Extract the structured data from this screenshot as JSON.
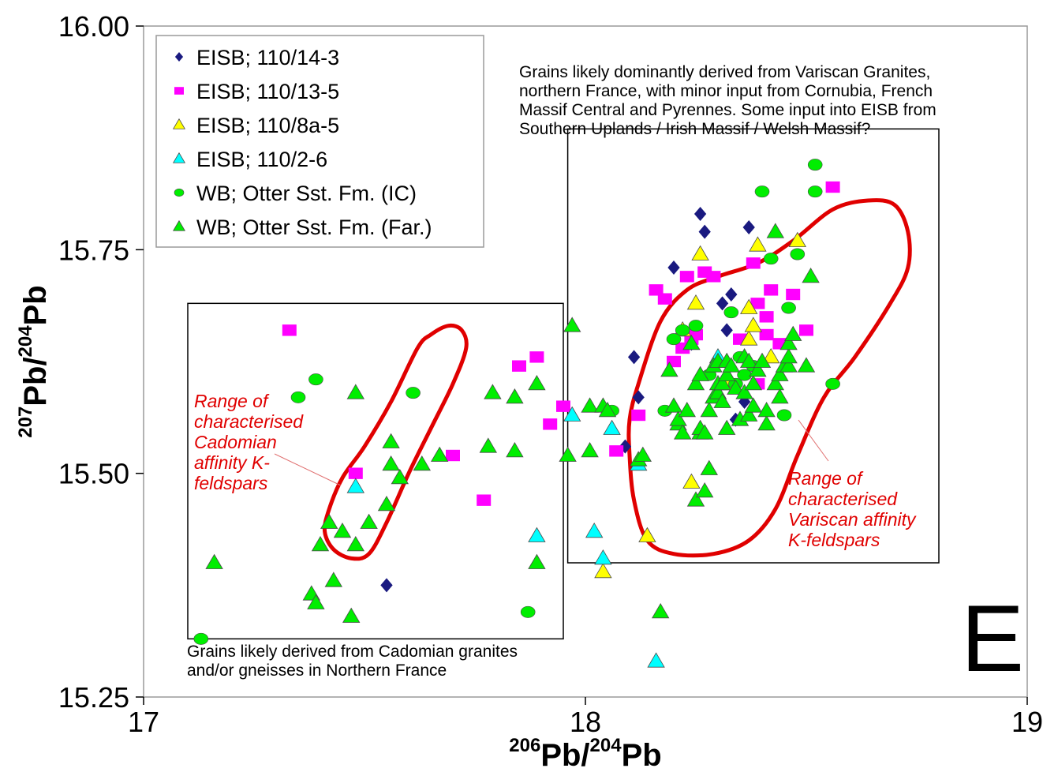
{
  "chart_data": {
    "type": "scatter",
    "title": "",
    "xlabel": {
      "sup1": "206",
      "main1": "Pb/",
      "sup2": "204",
      "main2": "Pb"
    },
    "ylabel": {
      "sup1": "207",
      "main1": "Pb/",
      "sup2": "204",
      "main2": "Pb"
    },
    "xlim": [
      17,
      19
    ],
    "ylim": [
      15.25,
      16.0
    ],
    "x_ticks": [
      {
        "value": 17,
        "label": "17"
      },
      {
        "value": 18,
        "label": "18"
      },
      {
        "value": 19,
        "label": "19"
      }
    ],
    "y_ticks": [
      {
        "value": 15.25,
        "label": "15.25"
      },
      {
        "value": 15.5,
        "label": "15.50"
      },
      {
        "value": 15.75,
        "label": "15.75"
      },
      {
        "value": 16.0,
        "label": "16.00"
      }
    ],
    "grid": false,
    "legend_position": "top-left",
    "panel_letter": "E",
    "series": [
      {
        "name": "EISB; 110/14-3",
        "marker": "diamond",
        "color": "#1a1a80",
        "points": [
          [
            17.55,
            15.375
          ],
          [
            18.09,
            15.53
          ],
          [
            18.11,
            15.63
          ],
          [
            18.12,
            15.585
          ],
          [
            18.2,
            15.73
          ],
          [
            18.24,
            15.645
          ],
          [
            18.26,
            15.79
          ],
          [
            18.27,
            15.77
          ],
          [
            18.31,
            15.69
          ],
          [
            18.32,
            15.66
          ],
          [
            18.33,
            15.7
          ],
          [
            18.34,
            15.56
          ],
          [
            18.36,
            15.58
          ],
          [
            18.37,
            15.775
          ]
        ]
      },
      {
        "name": "EISB; 110/13-5",
        "marker": "square",
        "color": "#ff00ff",
        "points": [
          [
            17.33,
            15.66
          ],
          [
            17.48,
            15.5
          ],
          [
            17.7,
            15.52
          ],
          [
            17.77,
            15.47
          ],
          [
            17.85,
            15.62
          ],
          [
            17.89,
            15.63
          ],
          [
            17.92,
            15.555
          ],
          [
            17.95,
            15.575
          ],
          [
            18.07,
            15.525
          ],
          [
            18.12,
            15.565
          ],
          [
            18.16,
            15.705
          ],
          [
            18.18,
            15.695
          ],
          [
            18.2,
            15.625
          ],
          [
            18.22,
            15.64
          ],
          [
            18.23,
            15.72
          ],
          [
            18.24,
            15.65
          ],
          [
            18.25,
            15.655
          ],
          [
            18.27,
            15.725
          ],
          [
            18.29,
            15.72
          ],
          [
            18.35,
            15.65
          ],
          [
            18.38,
            15.735
          ],
          [
            18.39,
            15.69
          ],
          [
            18.39,
            15.6
          ],
          [
            18.41,
            15.675
          ],
          [
            18.41,
            15.655
          ],
          [
            18.42,
            15.705
          ],
          [
            18.44,
            15.645
          ],
          [
            18.47,
            15.7
          ],
          [
            18.5,
            15.66
          ],
          [
            18.56,
            15.82
          ]
        ]
      },
      {
        "name": "EISB; 110/8a-5",
        "marker": "triangle",
        "color": "#ffff00",
        "points": [
          [
            18.04,
            15.39
          ],
          [
            18.14,
            15.43
          ],
          [
            18.22,
            15.66
          ],
          [
            18.24,
            15.49
          ],
          [
            18.25,
            15.69
          ],
          [
            18.26,
            15.745
          ],
          [
            18.32,
            15.6
          ],
          [
            18.37,
            15.65
          ],
          [
            18.37,
            15.685
          ],
          [
            18.38,
            15.665
          ],
          [
            18.39,
            15.755
          ],
          [
            18.42,
            15.63
          ],
          [
            18.48,
            15.76
          ]
        ]
      },
      {
        "name": "EISB; 110/2-6",
        "marker": "triangle",
        "color": "#00ffff",
        "points": [
          [
            17.48,
            15.485
          ],
          [
            17.89,
            15.43
          ],
          [
            17.97,
            15.565
          ],
          [
            18.02,
            15.435
          ],
          [
            18.04,
            15.405
          ],
          [
            18.06,
            15.55
          ],
          [
            18.12,
            15.51
          ],
          [
            18.16,
            15.29
          ],
          [
            18.3,
            15.63
          ]
        ]
      },
      {
        "name": "WB; Otter Sst. Fm. (IC)",
        "marker": "circle",
        "color": "#00ee00",
        "points": [
          [
            17.13,
            15.315
          ],
          [
            17.35,
            15.585
          ],
          [
            17.39,
            15.605
          ],
          [
            17.61,
            15.59
          ],
          [
            17.87,
            15.345
          ],
          [
            18.06,
            15.57
          ],
          [
            18.18,
            15.57
          ],
          [
            18.2,
            15.65
          ],
          [
            18.22,
            15.66
          ],
          [
            18.25,
            15.665
          ],
          [
            18.28,
            15.61
          ],
          [
            18.33,
            15.68
          ],
          [
            18.34,
            15.6
          ],
          [
            18.35,
            15.63
          ],
          [
            18.36,
            15.61
          ],
          [
            18.38,
            15.62
          ],
          [
            18.4,
            15.815
          ],
          [
            18.42,
            15.74
          ],
          [
            18.45,
            15.565
          ],
          [
            18.46,
            15.685
          ],
          [
            18.48,
            15.745
          ],
          [
            18.52,
            15.815
          ],
          [
            18.52,
            15.845
          ],
          [
            18.56,
            15.6
          ]
        ]
      },
      {
        "name": "WB; Otter Sst. Fm. (Far.)",
        "marker": "triangle",
        "color": "#00ee00",
        "points": [
          [
            17.16,
            15.4
          ],
          [
            17.38,
            15.365
          ],
          [
            17.39,
            15.355
          ],
          [
            17.4,
            15.42
          ],
          [
            17.42,
            15.445
          ],
          [
            17.43,
            15.38
          ],
          [
            17.45,
            15.435
          ],
          [
            17.47,
            15.34
          ],
          [
            17.48,
            15.42
          ],
          [
            17.48,
            15.59
          ],
          [
            17.51,
            15.445
          ],
          [
            17.55,
            15.465
          ],
          [
            17.56,
            15.51
          ],
          [
            17.56,
            15.535
          ],
          [
            17.58,
            15.495
          ],
          [
            17.63,
            15.51
          ],
          [
            17.67,
            15.52
          ],
          [
            17.78,
            15.53
          ],
          [
            17.79,
            15.59
          ],
          [
            17.84,
            15.585
          ],
          [
            17.84,
            15.525
          ],
          [
            17.89,
            15.4
          ],
          [
            17.89,
            15.6
          ],
          [
            17.96,
            15.52
          ],
          [
            17.97,
            15.665
          ],
          [
            18.01,
            15.575
          ],
          [
            18.01,
            15.525
          ],
          [
            18.04,
            15.575
          ],
          [
            18.05,
            15.57
          ],
          [
            18.12,
            15.515
          ],
          [
            18.13,
            15.52
          ],
          [
            18.17,
            15.345
          ],
          [
            18.19,
            15.615
          ],
          [
            18.2,
            15.575
          ],
          [
            18.21,
            15.555
          ],
          [
            18.21,
            15.56
          ],
          [
            18.22,
            15.545
          ],
          [
            18.23,
            15.57
          ],
          [
            18.24,
            15.645
          ],
          [
            18.25,
            15.6
          ],
          [
            18.25,
            15.47
          ],
          [
            18.26,
            15.545
          ],
          [
            18.26,
            15.55
          ],
          [
            18.26,
            15.61
          ],
          [
            18.27,
            15.545
          ],
          [
            18.27,
            15.48
          ],
          [
            18.28,
            15.505
          ],
          [
            18.28,
            15.57
          ],
          [
            18.29,
            15.585
          ],
          [
            18.29,
            15.62
          ],
          [
            18.3,
            15.59
          ],
          [
            18.3,
            15.6
          ],
          [
            18.3,
            15.625
          ],
          [
            18.31,
            15.6
          ],
          [
            18.31,
            15.58
          ],
          [
            18.32,
            15.61
          ],
          [
            18.32,
            15.55
          ],
          [
            18.32,
            15.625
          ],
          [
            18.33,
            15.62
          ],
          [
            18.34,
            15.595
          ],
          [
            18.35,
            15.56
          ],
          [
            18.36,
            15.59
          ],
          [
            18.36,
            15.63
          ],
          [
            18.37,
            15.625
          ],
          [
            18.37,
            15.565
          ],
          [
            18.38,
            15.575
          ],
          [
            18.38,
            15.6
          ],
          [
            18.39,
            15.615
          ],
          [
            18.4,
            15.625
          ],
          [
            18.41,
            15.555
          ],
          [
            18.41,
            15.57
          ],
          [
            18.43,
            15.6
          ],
          [
            18.44,
            15.585
          ],
          [
            18.44,
            15.61
          ],
          [
            18.45,
            15.62
          ],
          [
            18.46,
            15.62
          ],
          [
            18.46,
            15.63
          ],
          [
            18.46,
            15.645
          ],
          [
            18.47,
            15.655
          ],
          [
            18.5,
            15.62
          ],
          [
            18.51,
            15.72
          ],
          [
            18.43,
            15.77
          ]
        ]
      }
    ],
    "boxes": [
      {
        "name": "cadomian-box",
        "x": [
          17.1,
          17.95
        ],
        "y": [
          15.315,
          15.69
        ]
      },
      {
        "name": "variscan-box",
        "x": [
          17.96,
          18.8
        ],
        "y": [
          15.4,
          15.885
        ]
      }
    ],
    "outlines": [
      {
        "name": "cadomian-outline",
        "color": "#e00000",
        "points": [
          [
            17.42,
            15.46
          ],
          [
            17.41,
            15.435
          ],
          [
            17.43,
            15.415
          ],
          [
            17.47,
            15.405
          ],
          [
            17.51,
            15.41
          ],
          [
            17.55,
            15.445
          ],
          [
            17.6,
            15.5
          ],
          [
            17.65,
            15.55
          ],
          [
            17.7,
            15.6
          ],
          [
            17.73,
            15.64
          ],
          [
            17.72,
            15.66
          ],
          [
            17.69,
            15.665
          ],
          [
            17.65,
            15.655
          ],
          [
            17.62,
            15.64
          ],
          [
            17.56,
            15.58
          ],
          [
            17.5,
            15.53
          ],
          [
            17.45,
            15.495
          ]
        ]
      },
      {
        "name": "variscan-outline",
        "color": "#e00000",
        "points": [
          [
            18.12,
            15.6
          ],
          [
            18.17,
            15.67
          ],
          [
            18.23,
            15.705
          ],
          [
            18.3,
            15.72
          ],
          [
            18.39,
            15.735
          ],
          [
            18.47,
            15.76
          ],
          [
            18.56,
            15.795
          ],
          [
            18.64,
            15.805
          ],
          [
            18.7,
            15.8
          ],
          [
            18.73,
            15.77
          ],
          [
            18.73,
            15.73
          ],
          [
            18.69,
            15.69
          ],
          [
            18.61,
            15.63
          ],
          [
            18.54,
            15.585
          ],
          [
            18.48,
            15.52
          ],
          [
            18.43,
            15.46
          ],
          [
            18.37,
            15.425
          ],
          [
            18.29,
            15.41
          ],
          [
            18.2,
            15.41
          ],
          [
            18.14,
            15.425
          ],
          [
            18.11,
            15.47
          ],
          [
            18.1,
            15.52
          ],
          [
            18.1,
            15.56
          ]
        ]
      }
    ],
    "annotations": {
      "variscan_note": [
        "Grains likely dominantly derived from Variscan Granites,",
        "northern France, with minor input from Cornubia, French",
        "Massif Central and Pyrennes. Some input into EISB from",
        "Southern Uplands / Irish Massif / Welsh Massif?"
      ],
      "cadomian_note": [
        "Grains likely derived from Cadomian granites",
        "and/or gneisses in Northern France"
      ],
      "cadomian_range_label": [
        "Range of",
        "characterised",
        "Cadomian",
        "affinity K-",
        "feldspars"
      ],
      "variscan_range_label": [
        "Range of",
        "characterised",
        "Variscan affinity",
        "K-feldspars"
      ]
    }
  }
}
